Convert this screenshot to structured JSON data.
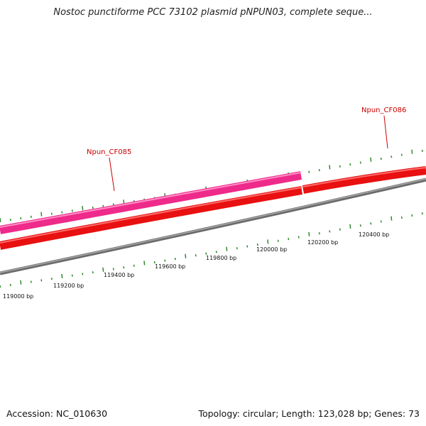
{
  "title": "Nostoc punctiforme PCC 73102 plasmid pNPUN03, complete seque...",
  "footer": {
    "accession": "Accession: NC_010630",
    "summary": "Topology: circular; Length: 123,028 bp; Genes: 73"
  },
  "colors": {
    "background": "#ffffff",
    "tick": "#2e8b2e",
    "gene_label": "#cc0000",
    "backbone": "#888888",
    "cds_forward": "#ee2a8a",
    "cds_reverse": "#e81010"
  },
  "ruler": {
    "labels": [
      {
        "bp": 119000,
        "text": "119000 bp"
      },
      {
        "bp": 119200,
        "text": "119200 bp"
      },
      {
        "bp": 119400,
        "text": "119400 bp"
      },
      {
        "bp": 119600,
        "text": "119600 bp"
      },
      {
        "bp": 119800,
        "text": "119800 bp"
      },
      {
        "bp": 120000,
        "text": "120000 bp"
      },
      {
        "bp": 120200,
        "text": "120200 bp"
      },
      {
        "bp": 120400,
        "text": "120400 bp"
      }
    ]
  },
  "genes": [
    {
      "name": "Npun_CF085",
      "strand": "forward"
    },
    {
      "name": "Npun_CF086",
      "strand": "reverse"
    }
  ]
}
